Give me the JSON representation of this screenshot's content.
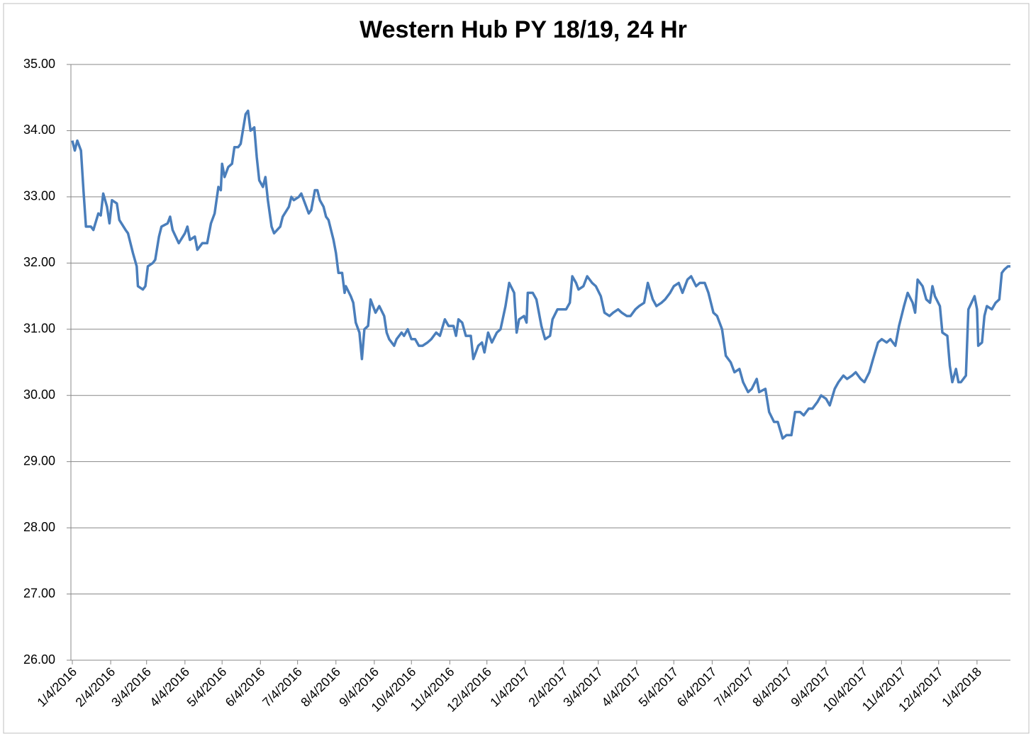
{
  "chart_data": {
    "type": "line",
    "title": "Western Hub PY 18/19, 24 Hr",
    "x": [
      "1/4/2016",
      "1/6/2016",
      "1/8/2016",
      "1/11/2016",
      "1/13/2016",
      "1/15/2016",
      "1/19/2016",
      "1/21/2016",
      "1/25/2016",
      "1/27/2016",
      "1/29/2016",
      "2/1/2016",
      "2/3/2016",
      "2/5/2016",
      "2/9/2016",
      "2/11/2016",
      "2/16/2016",
      "2/18/2016",
      "2/22/2016",
      "2/25/2016",
      "2/26/2016",
      "3/1/2016",
      "3/3/2016",
      "3/5/2016",
      "3/9/2016",
      "3/11/2016",
      "3/14/2016",
      "3/16/2016",
      "3/21/2016",
      "3/23/2016",
      "3/25/2016",
      "3/30/2016",
      "4/4/2016",
      "4/6/2016",
      "4/8/2016",
      "4/12/2016",
      "4/14/2016",
      "4/18/2016",
      "4/22/2016",
      "4/25/2016",
      "4/28/2016",
      "5/1/2016",
      "5/3/2016",
      "5/4/2016",
      "5/6/2016",
      "5/9/2016",
      "5/12/2016",
      "5/14/2016",
      "5/17/2016",
      "5/19/2016",
      "5/23/2016",
      "5/25/2016",
      "5/27/2016",
      "5/30/2016",
      "6/1/2016",
      "6/3/2016",
      "6/6/2016",
      "6/8/2016",
      "6/10/2016",
      "6/13/2016",
      "6/15/2016",
      "6/20/2016",
      "6/22/2016",
      "6/27/2016",
      "6/29/2016",
      "7/1/2016",
      "7/5/2016",
      "7/7/2016",
      "7/11/2016",
      "7/13/2016",
      "7/15/2016",
      "7/18/2016",
      "7/20/2016",
      "7/22/2016",
      "7/25/2016",
      "7/27/2016",
      "7/29/2016",
      "8/2/2016",
      "8/4/2016",
      "8/6/2016",
      "8/9/2016",
      "8/11/2016",
      "8/12/2016",
      "8/16/2016",
      "8/18/2016",
      "8/20/2016",
      "8/23/2016",
      "8/25/2016",
      "8/27/2016",
      "8/30/2016",
      "9/1/2016",
      "9/5/2016",
      "9/8/2016",
      "9/12/2016",
      "9/14/2016",
      "9/16/2016",
      "9/20/2016",
      "9/22/2016",
      "9/26/2016",
      "9/28/2016",
      "10/1/2016",
      "10/4/2016",
      "10/7/2016",
      "10/10/2016",
      "10/13/2016",
      "10/17/2016",
      "10/20/2016",
      "10/24/2016",
      "10/27/2016",
      "10/31/2016",
      "11/3/2016",
      "11/7/2016",
      "11/9/2016",
      "11/11/2016",
      "11/14/2016",
      "11/17/2016",
      "11/21/2016",
      "11/23/2016",
      "11/27/2016",
      "11/30/2016",
      "12/2/2016",
      "12/5/2016",
      "12/8/2016",
      "12/12/2016",
      "12/15/2016",
      "12/19/2016",
      "12/22/2016",
      "12/26/2016",
      "12/28/2016",
      "12/30/2016",
      "1/3/2017",
      "1/5/2017",
      "1/6/2017",
      "1/10/2017",
      "1/13/2017",
      "1/17/2017",
      "1/20/2017",
      "1/24/2017",
      "1/26/2017",
      "1/30/2017",
      "2/2/2017",
      "2/6/2017",
      "2/9/2017",
      "2/11/2017",
      "2/14/2017",
      "2/16/2017",
      "2/20/2017",
      "2/23/2017",
      "2/27/2017",
      "3/2/2017",
      "3/6/2017",
      "3/9/2017",
      "3/13/2017",
      "3/16/2017",
      "3/20/2017",
      "3/23/2017",
      "3/27/2017",
      "3/30/2017",
      "4/3/2017",
      "4/6/2017",
      "4/10/2017",
      "4/13/2017",
      "4/17/2017",
      "4/20/2017",
      "4/24/2017",
      "4/27/2017",
      "5/1/2017",
      "5/4/2017",
      "5/8/2017",
      "5/11/2017",
      "5/15/2017",
      "5/18/2017",
      "5/22/2017",
      "5/25/2017",
      "5/29/2017",
      "6/1/2017",
      "6/5/2017",
      "6/8/2017",
      "6/12/2017",
      "6/15/2017",
      "6/19/2017",
      "6/22/2017",
      "6/26/2017",
      "6/29/2017",
      "7/3/2017",
      "7/6/2017",
      "7/10/2017",
      "7/12/2017",
      "7/17/2017",
      "7/20/2017",
      "7/24/2017",
      "7/27/2017",
      "7/31/2017",
      "8/3/2017",
      "8/7/2017",
      "8/10/2017",
      "8/14/2017",
      "8/17/2017",
      "8/21/2017",
      "8/24/2017",
      "8/28/2017",
      "8/31/2017",
      "9/4/2017",
      "9/7/2017",
      "9/11/2017",
      "9/14/2017",
      "9/18/2017",
      "9/21/2017",
      "9/25/2017",
      "9/28/2017",
      "10/2/2017",
      "10/5/2017",
      "10/9/2017",
      "10/12/2017",
      "10/16/2017",
      "10/19/2017",
      "10/23/2017",
      "10/26/2017",
      "10/30/2017",
      "11/2/2017",
      "11/6/2017",
      "11/9/2017",
      "11/13/2017",
      "11/15/2017",
      "11/17/2017",
      "11/21/2017",
      "11/24/2017",
      "11/27/2017",
      "11/29/2017",
      "12/1/2017",
      "12/5/2017",
      "12/7/2017",
      "12/11/2017",
      "12/13/2017",
      "12/15/2017",
      "12/18/2017",
      "12/20/2017",
      "12/22/2017",
      "12/26/2017",
      "12/28/2017",
      "1/2/2018",
      "1/4/2018",
      "1/5/2018",
      "1/8/2018",
      "1/10/2018",
      "1/12/2018",
      "1/16/2018",
      "1/19/2018",
      "1/22/2018",
      "1/24/2018",
      "1/26/2018",
      "1/29/2018",
      "1/31/2018"
    ],
    "series": [
      {
        "name": "Western Hub PY 18/19, 24 Hr",
        "color": "#4a7ebb",
        "values": [
          33.85,
          33.7,
          33.85,
          33.7,
          33.1,
          32.55,
          32.55,
          32.5,
          32.75,
          32.72,
          33.05,
          32.85,
          32.6,
          32.95,
          32.9,
          32.65,
          32.5,
          32.45,
          32.15,
          31.95,
          31.65,
          31.6,
          31.65,
          31.95,
          32.0,
          32.05,
          32.4,
          32.55,
          32.6,
          32.7,
          32.5,
          32.3,
          32.45,
          32.55,
          32.35,
          32.4,
          32.2,
          32.3,
          32.3,
          32.6,
          32.75,
          33.15,
          33.1,
          33.5,
          33.3,
          33.45,
          33.5,
          33.75,
          33.75,
          33.8,
          34.25,
          34.3,
          34.0,
          34.05,
          33.6,
          33.25,
          33.15,
          33.3,
          32.95,
          32.55,
          32.45,
          32.55,
          32.7,
          32.85,
          33.0,
          32.95,
          33.0,
          33.05,
          32.85,
          32.75,
          32.8,
          33.1,
          33.1,
          32.95,
          32.85,
          32.7,
          32.65,
          32.35,
          32.15,
          31.85,
          31.85,
          31.55,
          31.65,
          31.5,
          31.4,
          31.1,
          30.95,
          30.55,
          31.0,
          31.05,
          31.45,
          31.25,
          31.35,
          31.2,
          30.95,
          30.85,
          30.75,
          30.85,
          30.95,
          30.9,
          31.0,
          30.85,
          30.85,
          30.75,
          30.75,
          30.8,
          30.85,
          30.95,
          30.9,
          31.15,
          31.05,
          31.05,
          30.9,
          31.15,
          31.1,
          30.9,
          30.9,
          30.55,
          30.75,
          30.8,
          30.65,
          30.95,
          30.8,
          30.95,
          31.0,
          31.35,
          31.7,
          31.55,
          30.95,
          31.15,
          31.2,
          31.1,
          31.55,
          31.55,
          31.45,
          31.05,
          30.85,
          30.9,
          31.15,
          31.3,
          31.3,
          31.3,
          31.4,
          31.8,
          31.7,
          31.6,
          31.65,
          31.8,
          31.7,
          31.65,
          31.5,
          31.25,
          31.2,
          31.25,
          31.3,
          31.25,
          31.2,
          31.2,
          31.3,
          31.35,
          31.4,
          31.7,
          31.45,
          31.35,
          31.4,
          31.45,
          31.55,
          31.65,
          31.7,
          31.55,
          31.75,
          31.8,
          31.65,
          31.7,
          31.7,
          31.55,
          31.25,
          31.2,
          31.0,
          30.6,
          30.5,
          30.35,
          30.4,
          30.2,
          30.05,
          30.1,
          30.25,
          30.05,
          30.1,
          29.75,
          29.6,
          29.6,
          29.35,
          29.4,
          29.4,
          29.75,
          29.75,
          29.7,
          29.8,
          29.8,
          29.9,
          30.0,
          29.95,
          29.85,
          30.1,
          30.2,
          30.3,
          30.25,
          30.3,
          30.35,
          30.25,
          30.2,
          30.35,
          30.55,
          30.8,
          30.85,
          30.8,
          30.85,
          30.75,
          31.05,
          31.35,
          31.55,
          31.4,
          31.25,
          31.75,
          31.65,
          31.45,
          31.4,
          31.65,
          31.5,
          31.35,
          30.95,
          30.9,
          30.45,
          30.2,
          30.4,
          30.2,
          30.2,
          30.3,
          31.3,
          31.5,
          31.3,
          30.75,
          30.8,
          31.2,
          31.35,
          31.3,
          31.4,
          31.45,
          31.85,
          31.9,
          31.95,
          31.95
        ]
      }
    ],
    "xlim": [
      "1/4/2016",
      "1/31/2018"
    ],
    "xticks": [
      "1/4/2016",
      "2/4/2016",
      "3/4/2016",
      "4/4/2016",
      "5/4/2016",
      "6/4/2016",
      "7/4/2016",
      "8/4/2016",
      "9/4/2016",
      "10/4/2016",
      "11/4/2016",
      "12/4/2016",
      "1/4/2017",
      "2/4/2017",
      "3/4/2017",
      "4/4/2017",
      "5/4/2017",
      "6/4/2017",
      "7/4/2017",
      "8/4/2017",
      "9/4/2017",
      "10/4/2017",
      "11/4/2017",
      "12/4/2017",
      "1/4/2018"
    ],
    "ylim": [
      26,
      35
    ],
    "yticks": [
      {
        "value": 26,
        "label": "26.00"
      },
      {
        "value": 27,
        "label": "27.00"
      },
      {
        "value": 28,
        "label": "28.00"
      },
      {
        "value": 29,
        "label": "29.00"
      },
      {
        "value": 30,
        "label": "30.00"
      },
      {
        "value": 31,
        "label": "31.00"
      },
      {
        "value": 32,
        "label": "32.00"
      },
      {
        "value": 33,
        "label": "33.00"
      },
      {
        "value": 34,
        "label": "34.00"
      },
      {
        "value": 35,
        "label": "35.00"
      }
    ],
    "grid": true
  }
}
